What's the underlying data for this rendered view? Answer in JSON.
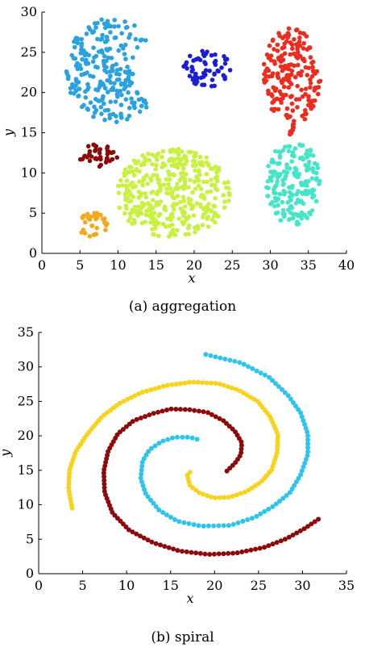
{
  "chart_data": [
    {
      "type": "scatter",
      "caption": "(a) aggregation",
      "xlabel": "x",
      "ylabel": "y",
      "xlim": [
        0,
        40
      ],
      "ylim": [
        0,
        30
      ],
      "xticks": [
        0,
        5,
        10,
        15,
        20,
        25,
        30,
        35,
        40
      ],
      "yticks": [
        0,
        5,
        10,
        15,
        20,
        25,
        30
      ],
      "clusters": [
        {
          "shape": "crescent",
          "color": "#2aa2df",
          "center": [
            9.5,
            22.8
          ],
          "radii": [
            6.5,
            6.5
          ],
          "notch": {
            "center": [
              16.2,
              23.0
            ],
            "radius": 4.3
          },
          "count": 240
        },
        {
          "shape": "ellipse",
          "color": "#1a1fd6",
          "center": [
            21.8,
            23.0
          ],
          "radii": [
            3.2,
            2.3
          ],
          "count": 60
        },
        {
          "shape": "ellipse",
          "color": "#ee2b1f",
          "center": [
            32.8,
            22.0
          ],
          "radii": [
            3.8,
            6.0
          ],
          "count": 190
        },
        {
          "shape": "bridge",
          "color": "#ee2b1f",
          "from": [
            33.0,
            16.0
          ],
          "to": [
            32.7,
            14.8
          ],
          "count": 8
        },
        {
          "shape": "ellipse",
          "color": "#8b0a0a",
          "center": [
            7.4,
            12.0
          ],
          "radii": [
            2.5,
            1.8
          ],
          "count": 40
        },
        {
          "shape": "ellipse",
          "color": "#c9f240",
          "center": [
            17.2,
            7.5
          ],
          "radii": [
            7.5,
            5.5
          ],
          "count": 380
        },
        {
          "shape": "ellipse",
          "color": "#45e6c8",
          "center": [
            33.0,
            8.8
          ],
          "radii": [
            3.6,
            5.3
          ],
          "count": 180
        },
        {
          "shape": "ellipse",
          "color": "#f4a81b",
          "center": [
            6.7,
            3.5
          ],
          "radii": [
            2.0,
            1.6
          ],
          "count": 35
        }
      ]
    },
    {
      "type": "scatter",
      "caption": "(b) spiral",
      "xlabel": "x",
      "ylabel": "y",
      "xlim": [
        0,
        35
      ],
      "ylim": [
        0,
        35
      ],
      "xticks": [
        0,
        5,
        10,
        15,
        20,
        25,
        30,
        35
      ],
      "yticks": [
        0,
        5,
        10,
        15,
        20,
        25,
        30,
        35
      ],
      "series": [
        {
          "color": "#2fc4ec",
          "count": 104,
          "points": [
            [
              19,
              31.8
            ],
            [
              23,
              30.6
            ],
            [
              26.2,
              28.5
            ],
            [
              28.4,
              25.8
            ],
            [
              29.8,
              23.3
            ],
            [
              30.6,
              20.3
            ],
            [
              30.6,
              17.3
            ],
            [
              29.8,
              14.4
            ],
            [
              28.6,
              11.8
            ],
            [
              26.7,
              9.8
            ],
            [
              24.6,
              8.2
            ],
            [
              21.8,
              7.0
            ],
            [
              18.5,
              6.9
            ],
            [
              15.8,
              7.6
            ],
            [
              13.7,
              9.2
            ],
            [
              12.2,
              11.5
            ],
            [
              11.6,
              13.8
            ],
            [
              11.8,
              16.3
            ],
            [
              12.6,
              18
            ],
            [
              14,
              19.2
            ],
            [
              15.5,
              19.8
            ],
            [
              17.2,
              19.8
            ],
            [
              18,
              19.5
            ]
          ]
        },
        {
          "color": "#f7d31c",
          "count": 117,
          "points": [
            [
              3.8,
              9.5
            ],
            [
              3.4,
              12.3
            ],
            [
              3.5,
              15
            ],
            [
              4.2,
              17.7
            ],
            [
              5.5,
              20.2
            ],
            [
              7.2,
              22.8
            ],
            [
              9.3,
              24.8
            ],
            [
              11.7,
              26.3
            ],
            [
              14.5,
              27.3
            ],
            [
              17.4,
              27.8
            ],
            [
              20.4,
              27.6
            ],
            [
              22.8,
              26.6
            ],
            [
              24.9,
              25
            ],
            [
              26.3,
              22.8
            ],
            [
              27.2,
              20.2
            ],
            [
              27.1,
              17.5
            ],
            [
              26.5,
              15.1
            ],
            [
              25.3,
              13.3
            ],
            [
              23.6,
              11.9
            ],
            [
              21.7,
              11.1
            ],
            [
              19.9,
              11
            ],
            [
              18.3,
              11.7
            ],
            [
              17.2,
              12.8
            ],
            [
              16.9,
              14.3
            ],
            [
              17.2,
              14.7
            ]
          ]
        },
        {
          "color": "#8d0a0a",
          "count": 116,
          "points": [
            [
              31.8,
              7.9
            ],
            [
              30.3,
              6.6
            ],
            [
              28.2,
              5.1
            ],
            [
              25.6,
              3.8
            ],
            [
              22.5,
              3
            ],
            [
              19.3,
              2.8
            ],
            [
              16,
              3.3
            ],
            [
              13,
              4.5
            ],
            [
              10.3,
              6.3
            ],
            [
              8.4,
              8.8
            ],
            [
              7.5,
              11.8
            ],
            [
              7.4,
              14.9
            ],
            [
              7.9,
              17.8
            ],
            [
              9,
              20.3
            ],
            [
              10.8,
              22.2
            ],
            [
              12.9,
              23.2
            ],
            [
              15,
              23.9
            ],
            [
              17.1,
              23.8
            ],
            [
              19.2,
              23.4
            ],
            [
              21,
              22.2
            ],
            [
              22.3,
              20.7
            ],
            [
              23.1,
              19
            ],
            [
              23,
              17.3
            ],
            [
              22.3,
              16
            ],
            [
              21.4,
              14.9
            ]
          ]
        }
      ]
    }
  ]
}
